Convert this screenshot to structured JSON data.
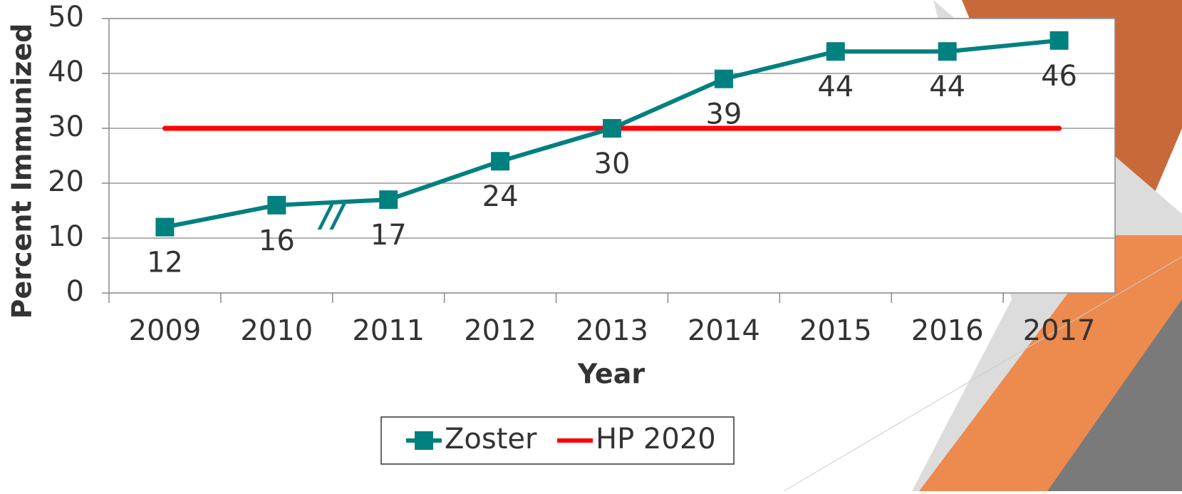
{
  "chart_data": {
    "type": "line",
    "y_label": "Percent Immunized",
    "x_label": "Year",
    "categories": [
      "2009",
      "2010",
      "2011",
      "2012",
      "2013",
      "2014",
      "2015",
      "2016",
      "2017"
    ],
    "series": [
      {
        "name": "Zoster",
        "color": "#00807f",
        "values": [
          12,
          16,
          17,
          24,
          30,
          39,
          44,
          44,
          46
        ]
      },
      {
        "name": "HP 2020",
        "color": "#ff0000",
        "values": [
          30,
          30,
          30,
          30,
          30,
          30,
          30,
          30,
          30
        ]
      }
    ],
    "annotation": "//",
    "ylim": [
      0,
      50
    ],
    "yticks": [
      0,
      10,
      20,
      30,
      40,
      50
    ],
    "grid": true,
    "legend": "bottom"
  }
}
